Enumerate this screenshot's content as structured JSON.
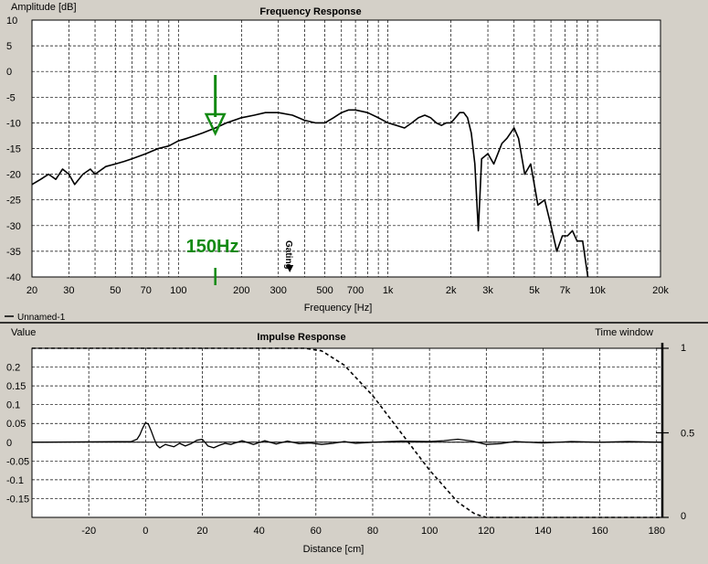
{
  "chart_data": [
    {
      "type": "line",
      "title": "Frequency Response",
      "ylabel": "Amplitude [dB]",
      "xlabel": "Frequency [Hz]",
      "x_scale": "log",
      "xlim": [
        20,
        20000
      ],
      "ylim": [
        -40,
        10
      ],
      "grid": true,
      "x_ticks": [
        20,
        30,
        50,
        70,
        100,
        200,
        300,
        500,
        700,
        1000,
        2000,
        3000,
        5000,
        7000,
        10000,
        20000
      ],
      "x_tick_labels": [
        "20",
        "30",
        "50",
        "70",
        "100",
        "200",
        "300",
        "500",
        "700",
        "1k",
        "2k",
        "3k",
        "5k",
        "7k",
        "10k",
        "20k"
      ],
      "y_ticks": [
        10,
        5,
        0,
        -5,
        -10,
        -15,
        -20,
        -25,
        -30,
        -35,
        -40
      ],
      "y_tick_labels": [
        "10",
        "5",
        "0",
        "-5",
        "-10",
        "-15",
        "-20",
        "-25",
        "-30",
        "-35",
        "-40"
      ],
      "legend": [
        "Unnamed-1"
      ],
      "legend_position": "bottom-left",
      "series": [
        {
          "name": "Unnamed-1",
          "x": [
            20,
            22,
            24,
            26,
            28,
            30,
            32,
            35,
            38,
            40,
            45,
            50,
            55,
            60,
            70,
            80,
            90,
            100,
            110,
            120,
            130,
            150,
            170,
            200,
            230,
            260,
            300,
            350,
            400,
            450,
            500,
            550,
            600,
            650,
            700,
            800,
            900,
            1000,
            1100,
            1200,
            1300,
            1400,
            1500,
            1600,
            1700,
            1800,
            1900,
            2000,
            2100,
            2200,
            2300,
            2400,
            2500,
            2600,
            2700,
            2800,
            3000,
            3200,
            3500,
            3700,
            4000,
            4200,
            4500,
            4800,
            5200,
            5600,
            6000,
            6400,
            6800,
            7200,
            7600,
            8000,
            8500,
            9000
          ],
          "y": [
            -22,
            -21,
            -20,
            -21,
            -19,
            -20,
            -22,
            -20,
            -19,
            -20,
            -18.5,
            -18,
            -17.5,
            -17,
            -16,
            -15,
            -14.5,
            -13.5,
            -13,
            -12.5,
            -12,
            -11,
            -10,
            -9,
            -8.5,
            -8,
            -8,
            -8.5,
            -9.5,
            -10,
            -10,
            -9,
            -8,
            -7.5,
            -7.5,
            -8,
            -9,
            -10,
            -10.5,
            -11,
            -10,
            -9,
            -8.5,
            -9,
            -10,
            -10.5,
            -10,
            -10,
            -9,
            -8,
            -8,
            -9,
            -12,
            -18,
            -31,
            -17,
            -16,
            -18,
            -14,
            -13,
            -11,
            -13,
            -20,
            -18,
            -26,
            -25,
            -30,
            -35,
            -32,
            -32,
            -31,
            -33,
            -33,
            -40
          ]
        }
      ],
      "annotations": [
        {
          "text": "150Hz",
          "color": "#138a13",
          "x": 150
        },
        {
          "text": "Gating",
          "x": 340,
          "orientation": "vertical"
        }
      ]
    },
    {
      "type": "line",
      "title": "Impulse Response",
      "ylabel": "Value",
      "xlabel": "Distance [cm]",
      "y2label": "Time window",
      "xlim": [
        -40,
        182
      ],
      "ylim": [
        -0.2,
        0.25
      ],
      "y2lim": [
        0,
        1
      ],
      "grid": true,
      "x_ticks": [
        -20,
        0,
        20,
        40,
        60,
        80,
        100,
        120,
        140,
        160,
        180
      ],
      "x_tick_labels": [
        "-20",
        "0",
        "20",
        "40",
        "60",
        "80",
        "100",
        "120",
        "140",
        "160",
        "180"
      ],
      "y_ticks": [
        0.2,
        0.15,
        0.1,
        0.05,
        0,
        -0.05,
        -0.1,
        -0.15
      ],
      "y_tick_labels": [
        "0.2",
        "0.15",
        "0.1",
        "0.05",
        "0",
        "-0.05",
        "-0.1",
        "-0.15"
      ],
      "y2_ticks": [
        1,
        0.5,
        0
      ],
      "y2_tick_labels": [
        "1",
        "0.5",
        "0"
      ],
      "series": [
        {
          "style": "solid",
          "x": [
            -40,
            -5,
            -3,
            -2,
            -1,
            0,
            1,
            2,
            3,
            4,
            5,
            6,
            7,
            8,
            10,
            12,
            14,
            16,
            18,
            20,
            22,
            24,
            26,
            28,
            30,
            34,
            38,
            42,
            46,
            50,
            54,
            58,
            62,
            66,
            70,
            74,
            80,
            90,
            100,
            105,
            110,
            115,
            120,
            125,
            130,
            140,
            150,
            160,
            170,
            182
          ],
          "y": [
            0,
            0.002,
            0.008,
            0.02,
            0.038,
            0.052,
            0.048,
            0.03,
            0.01,
            -0.008,
            -0.015,
            -0.01,
            -0.006,
            -0.008,
            -0.012,
            -0.003,
            -0.01,
            -0.004,
            0.005,
            0.008,
            -0.01,
            -0.015,
            -0.008,
            -0.003,
            -0.006,
            0.004,
            -0.006,
            0.004,
            -0.005,
            0.003,
            -0.004,
            -0.002,
            -0.006,
            -0.003,
            0.002,
            -0.003,
            0,
            0.003,
            0.002,
            0.004,
            0.008,
            0.003,
            -0.006,
            -0.004,
            0.002,
            -0.002,
            0.002,
            0,
            0.002,
            0
          ]
        },
        {
          "style": "dashed",
          "axis": "y2",
          "x": [
            -40,
            56,
            62,
            70,
            80,
            90,
            100,
            110,
            116,
            120,
            182
          ],
          "y": [
            1,
            1,
            0.985,
            0.9,
            0.72,
            0.5,
            0.28,
            0.09,
            0.02,
            0,
            0
          ]
        }
      ]
    }
  ]
}
